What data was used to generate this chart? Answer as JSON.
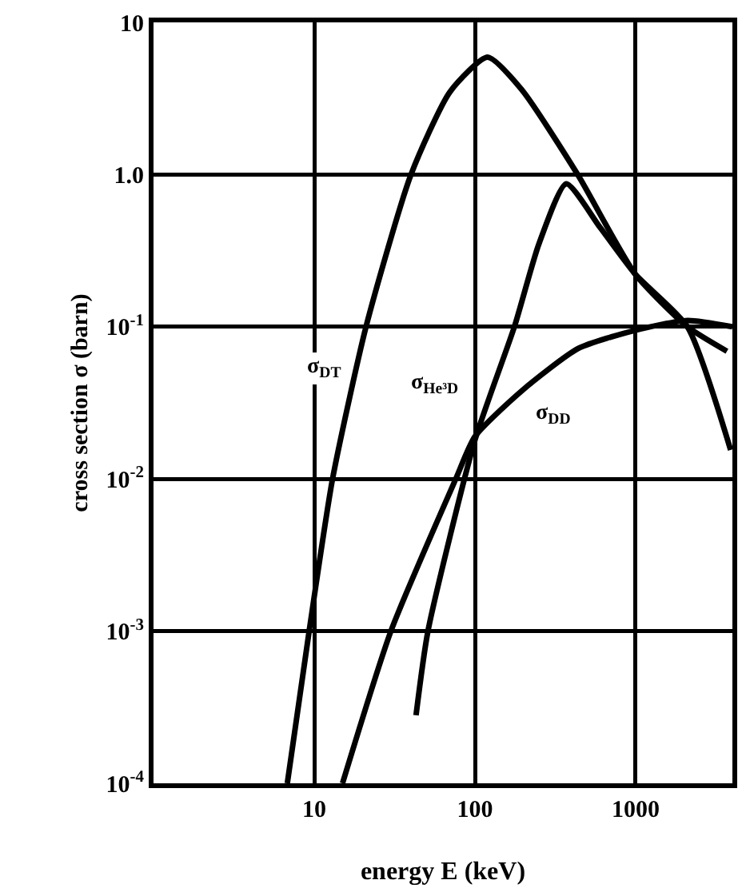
{
  "chart_data": {
    "type": "line",
    "xlabel": "energy E (keV)",
    "ylabel": "cross section σ (barn)",
    "log": "xy",
    "grid": true,
    "legend": false,
    "marker": "none",
    "line_style": "solid",
    "xlim": [
      1,
      4000
    ],
    "ylim": [
      0.0001,
      10
    ],
    "xticks": [
      10,
      100,
      1000
    ],
    "yticks": [
      {
        "value": 0.0001,
        "label": "10$^{-4}$"
      },
      {
        "value": 0.001,
        "label": "10$^{-3}$"
      },
      {
        "value": 0.01,
        "label": "10$^{-2}$"
      },
      {
        "value": 0.1,
        "label": "10$^{-1}$"
      },
      {
        "value": 1,
        "label": "1.0"
      },
      {
        "value": 10,
        "label": "10"
      }
    ],
    "series": [
      {
        "name": "σ$_{DT}$",
        "color": "#000000",
        "x": [
          6.8,
          9.3,
          13,
          21,
          40,
          70,
          120,
          196,
          436,
          1000,
          2100,
          3700
        ],
        "values": [
          0.0001,
          0.001,
          0.01,
          0.1,
          1.0,
          3.5,
          5.9,
          3.6,
          1.0,
          0.22,
          0.1,
          0.069
        ]
      },
      {
        "name": "σ$_{He³D}$",
        "color": "#000000",
        "x": [
          43,
          51,
          100,
          176,
          250,
          370,
          600,
          1000,
          2100,
          3900
        ],
        "values": [
          0.00028,
          0.001,
          0.018,
          0.1,
          0.35,
          0.87,
          0.45,
          0.22,
          0.1,
          0.0155
        ]
      },
      {
        "name": "σ$_{DD}$",
        "color": "#000000",
        "x": [
          15,
          30,
          76,
          100,
          196,
          440,
          1000,
          2100,
          4000
        ],
        "values": [
          0.0001,
          0.001,
          0.01,
          0.019,
          0.038,
          0.072,
          0.095,
          0.11,
          0.1
        ]
      }
    ]
  }
}
